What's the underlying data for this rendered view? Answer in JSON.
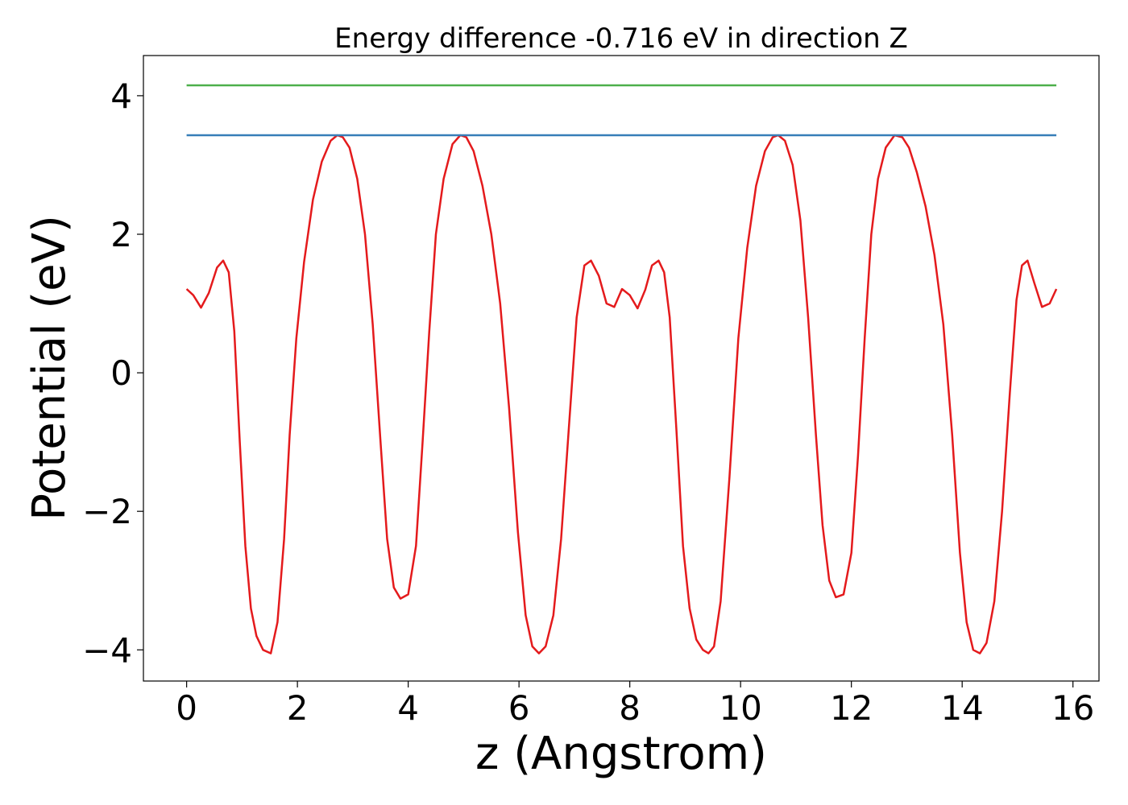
{
  "chart_data": {
    "type": "line",
    "title": "Energy difference -0.716 eV in direction Z",
    "xlabel": "z (Angstrom)",
    "ylabel": "Potential (eV)",
    "xlim": [
      -0.78,
      16.47
    ],
    "ylim": [
      -4.45,
      4.58
    ],
    "xticks": [
      0,
      2,
      4,
      6,
      8,
      10,
      12,
      14,
      16
    ],
    "xtick_labels": [
      "0",
      "2",
      "4",
      "6",
      "8",
      "10",
      "12",
      "14",
      "16"
    ],
    "yticks": [
      -4,
      -2,
      0,
      2,
      4
    ],
    "ytick_labels": [
      "−4",
      "−2",
      "0",
      "2",
      "4"
    ],
    "grid": false,
    "series": [
      {
        "color": "#e41a1c",
        "x": [
          0.0,
          0.12,
          0.26,
          0.4,
          0.55,
          0.66,
          0.76,
          0.86,
          0.96,
          1.06,
          1.16,
          1.26,
          1.38,
          1.52,
          1.64,
          1.76,
          1.86,
          1.98,
          2.12,
          2.28,
          2.44,
          2.6,
          2.72,
          2.82,
          2.94,
          3.08,
          3.22,
          3.36,
          3.5,
          3.62,
          3.74,
          3.86,
          4.0,
          4.14,
          4.26,
          4.38,
          4.5,
          4.64,
          4.8,
          4.94,
          5.05,
          5.18,
          5.34,
          5.5,
          5.66,
          5.82,
          5.98,
          6.12,
          6.24,
          6.36,
          6.48,
          6.62,
          6.76,
          6.9,
          7.04,
          7.18,
          7.3,
          7.44,
          7.58,
          7.72,
          7.86,
          8.0,
          8.14,
          8.28,
          8.4,
          8.52,
          8.62,
          8.72,
          8.84,
          8.96,
          9.08,
          9.2,
          9.32,
          9.42,
          9.52,
          9.64,
          9.8,
          9.96,
          10.12,
          10.28,
          10.44,
          10.58,
          10.68,
          10.8,
          10.94,
          11.08,
          11.22,
          11.36,
          11.48,
          11.6,
          11.72,
          11.86,
          12.0,
          12.12,
          12.24,
          12.36,
          12.48,
          12.62,
          12.78,
          12.92,
          13.04,
          13.18,
          13.34,
          13.5,
          13.66,
          13.82,
          13.96,
          14.08,
          14.2,
          14.32,
          14.44,
          14.58,
          14.72,
          14.86,
          14.98,
          15.08,
          15.18,
          15.3,
          15.44,
          15.58,
          15.7
        ],
        "y": [
          1.21,
          1.12,
          0.94,
          1.15,
          1.52,
          1.62,
          1.45,
          0.6,
          -1.0,
          -2.5,
          -3.4,
          -3.8,
          -4.0,
          -4.05,
          -3.6,
          -2.4,
          -0.9,
          0.5,
          1.6,
          2.5,
          3.05,
          3.35,
          3.43,
          3.4,
          3.25,
          2.8,
          2.0,
          0.7,
          -1.0,
          -2.4,
          -3.1,
          -3.26,
          -3.2,
          -2.5,
          -1.0,
          0.6,
          2.0,
          2.8,
          3.3,
          3.43,
          3.4,
          3.2,
          2.7,
          2.0,
          1.0,
          -0.5,
          -2.3,
          -3.5,
          -3.95,
          -4.05,
          -3.95,
          -3.5,
          -2.4,
          -0.8,
          0.8,
          1.55,
          1.62,
          1.4,
          1.0,
          0.95,
          1.21,
          1.12,
          0.93,
          1.2,
          1.55,
          1.62,
          1.45,
          0.8,
          -0.8,
          -2.5,
          -3.4,
          -3.85,
          -4.0,
          -4.05,
          -3.95,
          -3.3,
          -1.5,
          0.5,
          1.8,
          2.7,
          3.2,
          3.4,
          3.43,
          3.35,
          3.0,
          2.2,
          0.8,
          -0.9,
          -2.2,
          -3.0,
          -3.24,
          -3.2,
          -2.6,
          -1.2,
          0.5,
          2.0,
          2.8,
          3.25,
          3.43,
          3.4,
          3.25,
          2.9,
          2.4,
          1.7,
          0.7,
          -0.9,
          -2.6,
          -3.6,
          -4.0,
          -4.05,
          -3.9,
          -3.3,
          -2.0,
          -0.3,
          1.05,
          1.55,
          1.62,
          1.3,
          0.95,
          1.0,
          1.21
        ]
      },
      {
        "color": "#377eb8",
        "x": [
          0,
          15.7
        ],
        "y": [
          3.43,
          3.43
        ]
      },
      {
        "color": "#4daf4a",
        "x": [
          0,
          15.7
        ],
        "y": [
          4.15,
          4.15
        ]
      }
    ]
  }
}
